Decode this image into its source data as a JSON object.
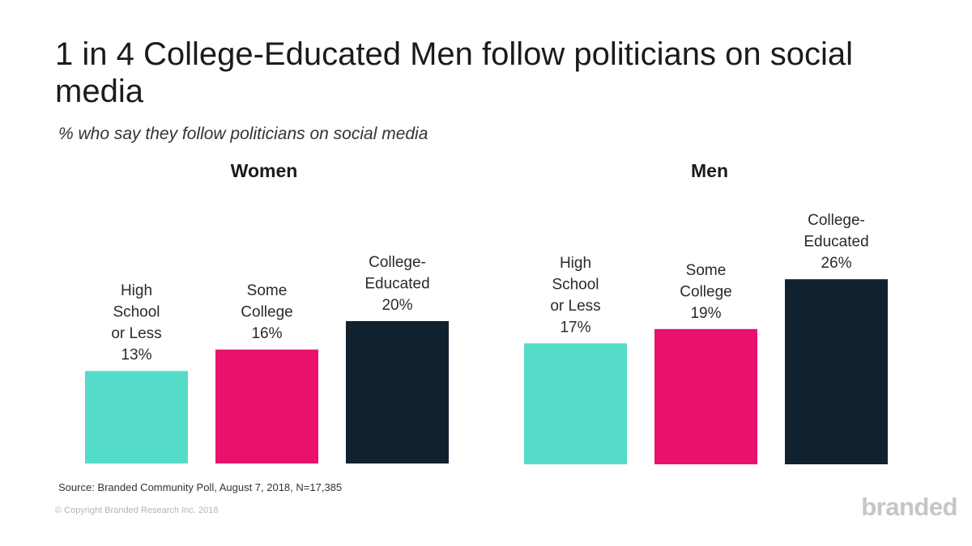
{
  "title": "1 in 4 College-Educated Men follow politicians on social media",
  "subtitle": "% who say they follow politicians on social media",
  "source": "Source: Branded Community Poll, August 7, 2018, N=17,385",
  "copyright": "© Copyright Branded Research Inc. 2018",
  "logo": "branded",
  "colors": {
    "high_school": "#55dcc9",
    "some_college": "#e8116b",
    "college_educated": "#12212e"
  },
  "chart_data": [
    {
      "type": "bar",
      "title": "Women",
      "categories": [
        "High School or Less",
        "Some College",
        "College-Educated"
      ],
      "label_lines": [
        [
          "High",
          "School",
          "or Less"
        ],
        [
          "Some",
          "College"
        ],
        [
          "College-",
          "Educated"
        ]
      ],
      "values": [
        13,
        16,
        20
      ],
      "value_labels": [
        "13%",
        "16%",
        "20%"
      ],
      "ylim": [
        0,
        30
      ],
      "grid": false
    },
    {
      "type": "bar",
      "title": "Men",
      "categories": [
        "High School or Less",
        "Some College",
        "College-Educated"
      ],
      "label_lines": [
        [
          "High",
          "School",
          "or Less"
        ],
        [
          "Some",
          "College"
        ],
        [
          "College-",
          "Educated"
        ]
      ],
      "values": [
        17,
        19,
        26
      ],
      "value_labels": [
        "17%",
        "19%",
        "26%"
      ],
      "ylim": [
        0,
        30
      ],
      "grid": false
    }
  ]
}
